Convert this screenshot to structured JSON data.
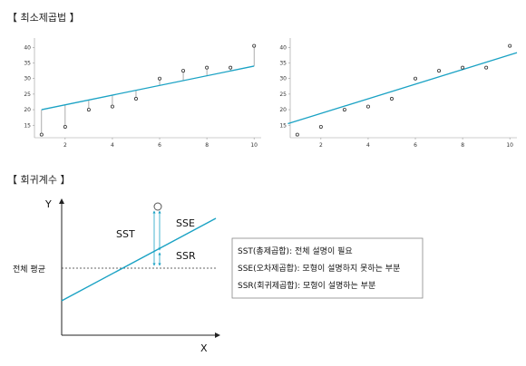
{
  "section1": {
    "title": "【 최소제곱법 】"
  },
  "section2": {
    "title": "【 회귀계수 】"
  },
  "chart_data": [
    {
      "type": "scatter",
      "x": [
        1,
        2,
        3,
        4,
        5,
        6,
        7,
        8,
        9,
        10
      ],
      "y": [
        12,
        14.5,
        20,
        21,
        23.5,
        30,
        32.5,
        33.5,
        33.5,
        40.5
      ],
      "fit_line": {
        "x": [
          1,
          10
        ],
        "y": [
          20,
          34
        ]
      },
      "residuals": "vertical",
      "xticks": [
        2,
        4,
        6,
        8,
        10
      ],
      "yticks": [
        15,
        20,
        25,
        30,
        35,
        40
      ],
      "xlim": [
        0.7,
        10.3
      ],
      "ylim": [
        11,
        43
      ],
      "colors": {
        "line": "#1aa2c4",
        "points": "#333333",
        "residual": "#888888"
      }
    },
    {
      "type": "scatter",
      "x": [
        1,
        2,
        3,
        4,
        5,
        6,
        7,
        8,
        9,
        10
      ],
      "y": [
        12,
        14.5,
        20,
        21,
        23.5,
        30,
        32.5,
        33.5,
        33.5,
        40.5
      ],
      "fit_line": {
        "x": [
          0.6,
          10.3
        ],
        "y": [
          15.5,
          38.3
        ]
      },
      "xticks": [
        2,
        4,
        6,
        8,
        10
      ],
      "yticks": [
        15,
        20,
        25,
        30,
        35,
        40
      ],
      "xlim": [
        0.7,
        10.3
      ],
      "ylim": [
        11,
        43
      ],
      "colors": {
        "line": "#1aa2c4",
        "points": "#333333"
      }
    }
  ],
  "diagram": {
    "axis_y": "Y",
    "axis_x": "X",
    "mean_label": "전체 평균",
    "sst": "SST",
    "sse": "SSE",
    "ssr": "SSR",
    "legend": [
      "SST(총제곱합): 전체 설명이 필요",
      "SSE(오차제곱합): 모형이 설명하지 못하는 부분",
      "SSR(회귀제곱합): 모형이 설명하는 부분"
    ],
    "colors": {
      "line": "#1aa2c4",
      "arrow": "#1aa2c4",
      "axis": "#222222"
    }
  }
}
